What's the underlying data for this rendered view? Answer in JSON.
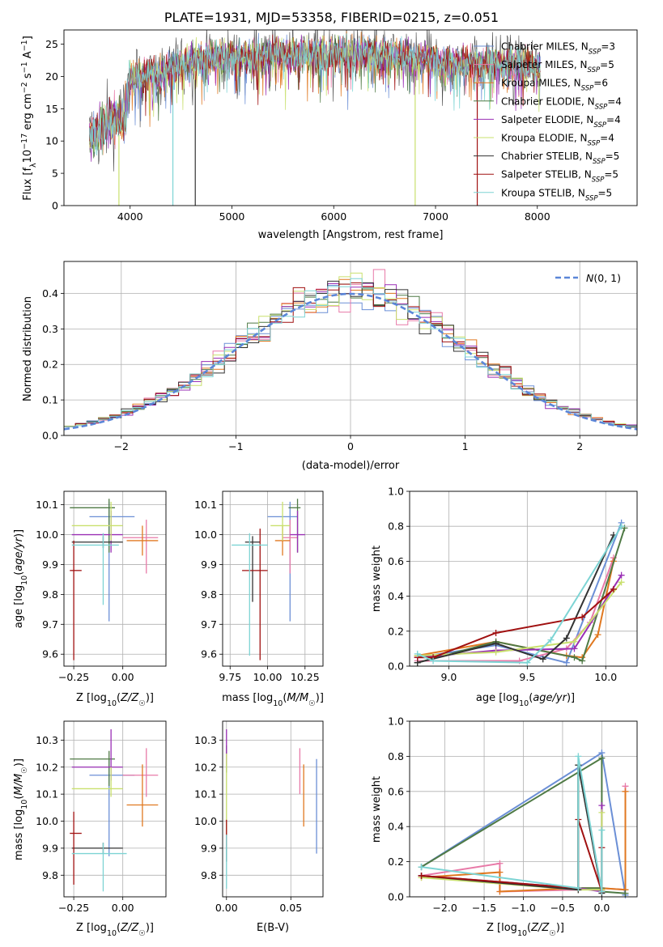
{
  "figure_title": "PLATE=1931, MJD=53358, FIBERID=0215, z=0.051",
  "series_names": [
    "Chabrier MILES, N$_{SSP}$=3",
    "Salpeter MILES, N$_{SSP}$=5",
    "Kroupa MILES, N$_{SSP}$=6",
    "Chabrier ELODIE, N$_{SSP}$=4",
    "Salpeter ELODIE, N$_{SSP}$=4",
    "Kroupa ELODIE, N$_{SSP}$=4",
    "Chabrier STELIB, N$_{SSP}$=5",
    "Salpeter STELIB, N$_{SSP}$=5",
    "Kroupa STELIB, N$_{SSP}$=5"
  ],
  "series_colors": [
    "#6b8fd6",
    "#e87aa8",
    "#e07820",
    "#4f7a45",
    "#9a2fb5",
    "#c9e06e",
    "#333333",
    "#a01010",
    "#7dd4d4"
  ],
  "legend_labels": [
    {
      "pre": "Chabrier MILES, N",
      "sub": "SSP",
      "post": "=3"
    },
    {
      "pre": "Salpeter MILES, N",
      "sub": "SSP",
      "post": "=5"
    },
    {
      "pre": "Kroupa MILES, N",
      "sub": "SSP",
      "post": "=6"
    },
    {
      "pre": "Chabrier ELODIE, N",
      "sub": "SSP",
      "post": "=4"
    },
    {
      "pre": "Salpeter ELODIE, N",
      "sub": "SSP",
      "post": "=4"
    },
    {
      "pre": "Kroupa ELODIE, N",
      "sub": "SSP",
      "post": "=4"
    },
    {
      "pre": "Chabrier STELIB, N",
      "sub": "SSP",
      "post": "=5"
    },
    {
      "pre": "Salpeter STELIB, N",
      "sub": "SSP",
      "post": "=5"
    },
    {
      "pre": "Kroupa STELIB, N",
      "sub": "SSP",
      "post": "=5"
    }
  ],
  "chart_data": [
    {
      "id": "spectrum",
      "type": "line",
      "title": "PLATE=1931, MJD=53358, FIBERID=0215, z=0.051",
      "xlabel": "wavelength [Angstrom, rest frame]",
      "ylabel": "Flux [f_λ 10^-17 erg cm^-2 s^-1 A^-1]",
      "xlim": [
        3350,
        8980
      ],
      "ylim": [
        0,
        27.2
      ],
      "xticks": [
        4000,
        5000,
        6000,
        7000,
        8000
      ],
      "yticks": [
        0,
        5,
        10,
        15,
        20,
        25
      ],
      "grid": false,
      "legend": "top-right",
      "observed_continuum": {
        "x": [
          3600,
          3700,
          3800,
          3900,
          3950,
          4000,
          4100,
          4200,
          4300,
          4400,
          4500,
          4600,
          4700,
          4800,
          4900,
          5000,
          5200,
          5400,
          5600,
          5800,
          6000,
          6200,
          6400,
          6600,
          6800,
          7000,
          7200,
          7400,
          7600,
          7800,
          8000
        ],
        "y": [
          10.5,
          11.5,
          13,
          14,
          13.5,
          19.5,
          20,
          20.5,
          20,
          21.5,
          22,
          22.5,
          22.5,
          23,
          23,
          23,
          23,
          23.5,
          23.5,
          23.5,
          23.5,
          23.5,
          23.5,
          23,
          23,
          22.5,
          22,
          22,
          22,
          22,
          21.5
        ]
      },
      "glitches": [
        {
          "series": 5,
          "x": 3890,
          "y": 0
        },
        {
          "series": 8,
          "x": 4420,
          "y": 0
        },
        {
          "series": 6,
          "x": 4640,
          "y": 0
        },
        {
          "series": 5,
          "x": 6800,
          "y": 0
        },
        {
          "series": 7,
          "x": 7410,
          "y": 0
        }
      ]
    },
    {
      "id": "residuals",
      "type": "step",
      "xlabel": "(data-model)/error",
      "ylabel": "Normed distribution",
      "xlim": [
        -2.5,
        2.5
      ],
      "ylim": [
        0,
        0.49
      ],
      "xticks": [
        -2,
        -1,
        0,
        1,
        2
      ],
      "yticks": [
        0.0,
        0.1,
        0.2,
        0.3,
        0.4
      ],
      "grid": true,
      "legend": "top-right",
      "reference_label": "N(0,1)",
      "bin_width": 0.1,
      "bin_start": -2.5
    },
    {
      "id": "z-age",
      "type": "errorbar",
      "xlabel": "Z [log10(Z/Z☉)]",
      "ylabel": "age [log10(age/yr)]",
      "xlim": [
        -0.3,
        0.22
      ],
      "ylim": [
        9.56,
        10.145
      ],
      "xticks": [
        -0.25,
        0.0
      ],
      "yticks": [
        9.6,
        9.7,
        9.8,
        9.9,
        10.0,
        10.1
      ],
      "grid": true,
      "points": [
        {
          "s": 0,
          "x": -0.07,
          "y": 10.06,
          "xerr": [
            0.1,
            0.13
          ],
          "yerr": [
            0.35,
            0.05
          ]
        },
        {
          "s": 1,
          "x": 0.12,
          "y": 9.99,
          "xerr": [
            0.12,
            0.06
          ],
          "yerr": [
            0.12,
            0.06
          ]
        },
        {
          "s": 2,
          "x": 0.1,
          "y": 9.98,
          "xerr": [
            0.08,
            0.08
          ],
          "yerr": [
            0.05,
            0.05
          ]
        },
        {
          "s": 3,
          "x": -0.07,
          "y": 10.09,
          "xerr": [
            0.2,
            0.03
          ],
          "yerr": [
            0.15,
            0.03
          ]
        },
        {
          "s": 4,
          "x": -0.06,
          "y": 10.0,
          "xerr": [
            0.2,
            0.06
          ],
          "yerr": [
            0.06,
            0.08
          ]
        },
        {
          "s": 5,
          "x": -0.06,
          "y": 10.03,
          "xerr": [
            0.2,
            0.06
          ],
          "yerr": [
            0.05,
            0.08
          ]
        },
        {
          "s": 6,
          "x": -0.1,
          "y": 9.975,
          "xerr": [
            0.16,
            0.1
          ],
          "yerr": [
            0.02,
            0.02
          ]
        },
        {
          "s": 7,
          "x": -0.25,
          "y": 9.88,
          "xerr": [
            0.02,
            0.04
          ],
          "yerr": [
            0.3,
            0.1
          ]
        },
        {
          "s": 8,
          "x": -0.1,
          "y": 9.965,
          "xerr": [
            0.16,
            0.08
          ],
          "yerr": [
            0.2,
            0.04
          ]
        }
      ]
    },
    {
      "id": "mass-age",
      "type": "errorbar",
      "xlabel": "mass [log10(M/M☉)]",
      "ylabel": "",
      "xlim": [
        9.7,
        10.37
      ],
      "ylim": [
        9.56,
        10.145
      ],
      "xticks": [
        9.75,
        10.0,
        10.25
      ],
      "yticks": [
        9.6,
        9.7,
        9.8,
        9.9,
        10.0,
        10.1
      ],
      "grid": true,
      "points": [
        {
          "s": 0,
          "x": 10.15,
          "y": 10.06,
          "xerr": [
            0.15,
            0.05
          ],
          "yerr": [
            0.35,
            0.05
          ]
        },
        {
          "s": 1,
          "x": 10.15,
          "y": 9.99,
          "xerr": [
            0.05,
            0.05
          ],
          "yerr": [
            0.12,
            0.06
          ]
        },
        {
          "s": 2,
          "x": 10.1,
          "y": 9.98,
          "xerr": [
            0.05,
            0.05
          ],
          "yerr": [
            0.05,
            0.05
          ]
        },
        {
          "s": 3,
          "x": 10.2,
          "y": 10.09,
          "xerr": [
            0.06,
            0.02
          ],
          "yerr": [
            0.15,
            0.03
          ]
        },
        {
          "s": 4,
          "x": 10.2,
          "y": 10.0,
          "xerr": [
            0.05,
            0.05
          ],
          "yerr": [
            0.06,
            0.08
          ]
        },
        {
          "s": 5,
          "x": 10.1,
          "y": 10.03,
          "xerr": [
            0.08,
            0.05
          ],
          "yerr": [
            0.05,
            0.08
          ]
        },
        {
          "s": 6,
          "x": 9.9,
          "y": 9.975,
          "xerr": [
            0.05,
            0.05
          ],
          "yerr": [
            0.2,
            0.02
          ]
        },
        {
          "s": 7,
          "x": 9.95,
          "y": 9.88,
          "xerr": [
            0.12,
            0.05
          ],
          "yerr": [
            0.3,
            0.14
          ]
        },
        {
          "s": 8,
          "x": 9.88,
          "y": 9.965,
          "xerr": [
            0.12,
            0.12
          ],
          "yerr": [
            0.37,
            0.04
          ]
        }
      ]
    },
    {
      "id": "age-weight",
      "type": "line",
      "xlabel": "age [log10(age/yr)]",
      "ylabel": "mass weight",
      "xlim": [
        8.75,
        10.2
      ],
      "ylim": [
        0,
        1.0
      ],
      "xticks": [
        9.0,
        9.5,
        10.0
      ],
      "yticks": [
        0.0,
        0.2,
        0.4,
        0.6,
        0.8,
        1.0
      ],
      "grid": true,
      "series": [
        {
          "s": 0,
          "x": [
            8.8,
            9.3,
            9.75,
            10.1
          ],
          "y": [
            0.05,
            0.12,
            0.02,
            0.82
          ]
        },
        {
          "s": 1,
          "x": [
            8.8,
            9.45,
            9.75,
            9.9,
            10.05
          ],
          "y": [
            0.03,
            0.03,
            0.1,
            0.25,
            0.62
          ]
        },
        {
          "s": 2,
          "x": [
            8.8,
            9.3,
            9.75,
            9.85,
            9.95,
            10.05
          ],
          "y": [
            0.06,
            0.14,
            0.06,
            0.05,
            0.18,
            0.6
          ]
        },
        {
          "s": 3,
          "x": [
            8.8,
            9.3,
            9.8,
            9.85,
            10.12
          ],
          "y": [
            0.02,
            0.14,
            0.05,
            0.03,
            0.79
          ]
        },
        {
          "s": 4,
          "x": [
            8.8,
            9.3,
            9.8,
            10.1
          ],
          "y": [
            0.05,
            0.09,
            0.1,
            0.52
          ]
        },
        {
          "s": 5,
          "x": [
            8.8,
            9.3,
            9.8,
            10.1
          ],
          "y": [
            0.06,
            0.08,
            0.14,
            0.48
          ]
        },
        {
          "s": 6,
          "x": [
            8.8,
            9.3,
            9.6,
            9.75,
            10.05
          ],
          "y": [
            0.02,
            0.13,
            0.04,
            0.16,
            0.75
          ]
        },
        {
          "s": 7,
          "x": [
            8.8,
            8.9,
            9.3,
            9.85,
            10.05
          ],
          "y": [
            0.05,
            0.05,
            0.19,
            0.28,
            0.44
          ]
        },
        {
          "s": 8,
          "x": [
            8.8,
            8.9,
            9.5,
            9.65,
            10.1
          ],
          "y": [
            0.07,
            0.03,
            0.02,
            0.15,
            0.8
          ]
        }
      ]
    },
    {
      "id": "z-mass",
      "type": "errorbar",
      "xlabel": "Z [log10(Z/Z☉)]",
      "ylabel": "mass [log10(M/M☉)]",
      "xlim": [
        -0.3,
        0.22
      ],
      "ylim": [
        9.72,
        10.37
      ],
      "xticks": [
        -0.25,
        0.0
      ],
      "yticks": [
        9.8,
        9.9,
        10.0,
        10.1,
        10.2,
        10.3
      ],
      "grid": true,
      "points": [
        {
          "s": 0,
          "x": -0.07,
          "y": 10.17,
          "xerr": [
            0.1,
            0.13
          ],
          "yerr": [
            0.3,
            0.06
          ]
        },
        {
          "s": 1,
          "x": 0.12,
          "y": 10.17,
          "xerr": [
            0.12,
            0.06
          ],
          "yerr": [
            0.08,
            0.1
          ]
        },
        {
          "s": 2,
          "x": 0.1,
          "y": 10.06,
          "xerr": [
            0.08,
            0.08
          ],
          "yerr": [
            0.08,
            0.15
          ]
        },
        {
          "s": 3,
          "x": -0.07,
          "y": 10.23,
          "xerr": [
            0.2,
            0.03
          ],
          "yerr": [
            0.1,
            0.03
          ]
        },
        {
          "s": 4,
          "x": -0.06,
          "y": 10.2,
          "xerr": [
            0.2,
            0.06
          ],
          "yerr": [
            0.05,
            0.14
          ]
        },
        {
          "s": 5,
          "x": -0.06,
          "y": 10.12,
          "xerr": [
            0.2,
            0.06
          ],
          "yerr": [
            0.03,
            0.08
          ]
        },
        {
          "s": 6,
          "x": -0.1,
          "y": 9.9,
          "xerr": [
            0.16,
            0.1
          ],
          "yerr": [
            0.02,
            0.02
          ]
        },
        {
          "s": 7,
          "x": -0.25,
          "y": 9.955,
          "xerr": [
            0.02,
            0.04
          ],
          "yerr": [
            0.19,
            0.08
          ]
        },
        {
          "s": 8,
          "x": -0.1,
          "y": 9.88,
          "xerr": [
            0.16,
            0.12
          ],
          "yerr": [
            0.14,
            0.04
          ]
        }
      ]
    },
    {
      "id": "ebv-mass",
      "type": "errorbar",
      "xlabel": "E(B-V)",
      "ylabel": "",
      "xlim": [
        -0.003,
        0.075
      ],
      "ylim": [
        9.72,
        10.37
      ],
      "xticks": [
        0.0,
        0.05
      ],
      "yticks": [
        9.8,
        9.9,
        10.0,
        10.1,
        10.2,
        10.3
      ],
      "grid": true,
      "points": [
        {
          "s": 0,
          "x": 0.07,
          "y": 10.05,
          "xerr": [
            0,
            0
          ],
          "yerr": [
            0.17,
            0.18
          ]
        },
        {
          "s": 1,
          "x": 0.057,
          "y": 10.17,
          "xerr": [
            0,
            0
          ],
          "yerr": [
            0.07,
            0.1
          ]
        },
        {
          "s": 2,
          "x": 0.06,
          "y": 10.08,
          "xerr": [
            0,
            0
          ],
          "yerr": [
            0.1,
            0.13
          ]
        },
        {
          "s": 3,
          "x": 0,
          "y": 10.23,
          "xerr": [
            0,
            0
          ],
          "yerr": [
            0.05,
            0.05
          ]
        },
        {
          "s": 4,
          "x": 0,
          "y": 10.27,
          "xerr": [
            0,
            0
          ],
          "yerr": [
            0.06,
            0.07
          ]
        },
        {
          "s": 5,
          "x": 0,
          "y": 10.12,
          "xerr": [
            0,
            0
          ],
          "yerr": [
            0.2,
            0.13
          ]
        },
        {
          "s": 6,
          "x": 0,
          "y": 9.9,
          "xerr": [
            0,
            0
          ],
          "yerr": [
            0.05,
            0.05
          ]
        },
        {
          "s": 7,
          "x": 0,
          "y": 9.955,
          "xerr": [
            0,
            0
          ],
          "yerr": [
            0.05,
            0.05
          ]
        },
        {
          "s": 8,
          "x": 0,
          "y": 9.85,
          "xerr": [
            0,
            0
          ],
          "yerr": [
            0.1,
            0.1
          ]
        }
      ]
    },
    {
      "id": "z-weight",
      "type": "line",
      "xlabel": "Z [log10(Z/Z☉)]",
      "ylabel": "mass weight",
      "xlim": [
        -2.45,
        0.45
      ],
      "ylim": [
        0,
        1.0
      ],
      "xticks": [
        -2.0,
        -1.5,
        -1.0,
        -0.5,
        0.0
      ],
      "yticks": [
        0.0,
        0.2,
        0.4,
        0.6,
        0.8,
        1.0
      ],
      "grid": true,
      "series": [
        {
          "s": 0,
          "x": [
            -2.3,
            0.0,
            0.3
          ],
          "y": [
            0.17,
            0.82,
            0.01
          ]
        },
        {
          "s": 1,
          "x": [
            -2.3,
            -1.3,
            -1.3,
            -0.3,
            0.0,
            0.3,
            0.3
          ],
          "y": [
            0.12,
            0.19,
            0.03,
            0.04,
            0.05,
            0.04,
            0.63
          ]
        },
        {
          "s": 2,
          "x": [
            -2.3,
            -1.3,
            -1.3,
            -0.3,
            0.0,
            0.3,
            0.3
          ],
          "y": [
            0.11,
            0.14,
            0.03,
            0.05,
            0.05,
            0.04,
            0.6
          ]
        },
        {
          "s": 3,
          "x": [
            -2.3,
            0.0,
            0.0,
            -0.3,
            -0.3,
            0.0,
            0.3
          ],
          "y": [
            0.17,
            0.79,
            0.05,
            0.05,
            0.75,
            0.03,
            0.02
          ]
        },
        {
          "s": 4,
          "x": [
            -2.3,
            -0.3,
            0.0,
            0.0
          ],
          "y": [
            0.12,
            0.05,
            0.03,
            0.52
          ]
        },
        {
          "s": 5,
          "x": [
            -2.3,
            -0.3,
            0.0,
            0.0
          ],
          "y": [
            0.11,
            0.04,
            0.04,
            0.48
          ]
        },
        {
          "s": 6,
          "x": [
            -2.3,
            -0.3,
            -0.3,
            0.0
          ],
          "y": [
            0.12,
            0.04,
            0.75,
            0.02
          ]
        },
        {
          "s": 7,
          "x": [
            -2.3,
            -0.3,
            -0.3,
            0.0,
            0.0
          ],
          "y": [
            0.12,
            0.05,
            0.44,
            0.03,
            0.28
          ]
        },
        {
          "s": 8,
          "x": [
            -2.3,
            -0.3,
            -0.3,
            0.0,
            0.0
          ],
          "y": [
            0.17,
            0.05,
            0.8,
            0.03,
            0.38
          ]
        }
      ]
    }
  ]
}
